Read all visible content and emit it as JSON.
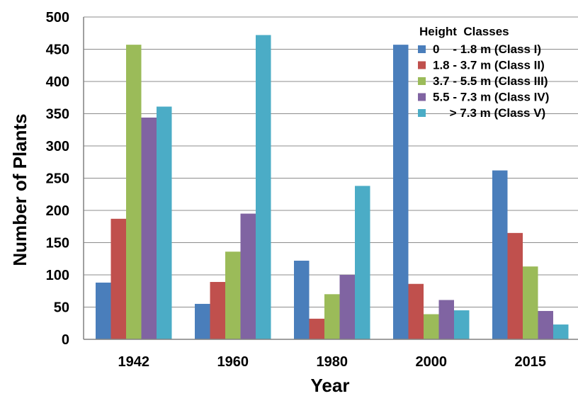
{
  "chart_data": {
    "type": "bar",
    "xlabel": "Year",
    "ylabel": "Number of Plants",
    "ylim": [
      0,
      500
    ],
    "yticks": [
      0,
      50,
      100,
      150,
      200,
      250,
      300,
      350,
      400,
      450,
      500
    ],
    "grid": "horizontal",
    "legend_title": "Height  Classes",
    "legend_position": "top-right",
    "categories": [
      "1942",
      "1960",
      "1980",
      "2000",
      "2015"
    ],
    "series": [
      {
        "name": "0    - 1.8 m (Class I)",
        "color": "#4a7ebb",
        "values": [
          88,
          55,
          122,
          457,
          262
        ]
      },
      {
        "name": "1.8 - 3.7 m (Class II)",
        "color": "#c0504d",
        "values": [
          187,
          89,
          32,
          86,
          165
        ]
      },
      {
        "name": "3.7 - 5.5 m (Class III)",
        "color": "#9bbb59",
        "values": [
          457,
          136,
          70,
          39,
          113
        ]
      },
      {
        "name": "5.5 - 7.3 m (Class IV)",
        "color": "#8064a2",
        "values": [
          344,
          195,
          100,
          61,
          44
        ]
      },
      {
        "name": "     > 7.3 m (Class V)",
        "color": "#4bacc6",
        "values": [
          361,
          472,
          238,
          45,
          23
        ]
      }
    ]
  }
}
